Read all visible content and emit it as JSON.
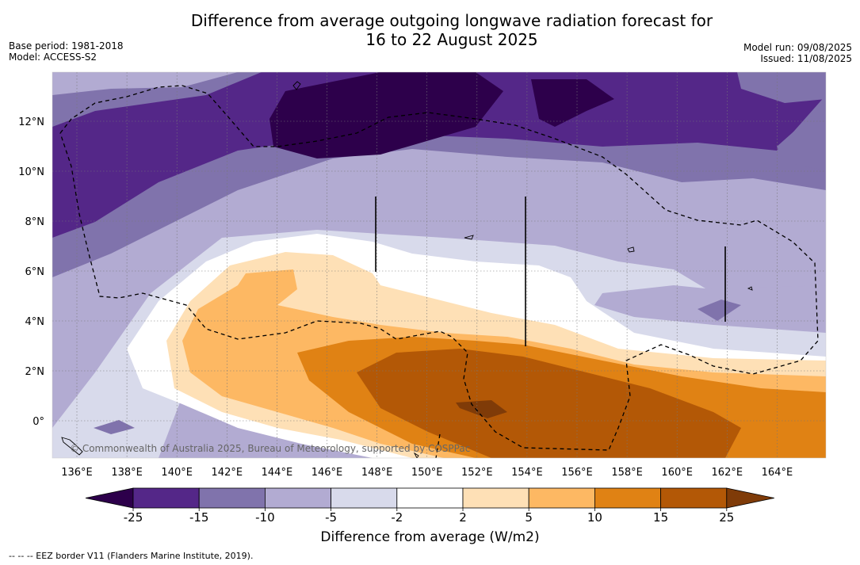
{
  "header": {
    "title_line1": "Difference from average outgoing longwave radiation forecast for",
    "title_line2": "16 to 22 August 2025",
    "base_period": "Base period: 1981-2018",
    "model": "Model: ACCESS-S2",
    "model_run": "Model run: 09/08/2025",
    "issued": "Issued: 11/08/2025"
  },
  "map": {
    "copyright": "© Commonwealth of Australia 2025, Bureau of Meteorology, supported by COSPPac",
    "lon_labels": [
      "136°E",
      "138°E",
      "140°E",
      "142°E",
      "144°E",
      "146°E",
      "148°E",
      "150°E",
      "152°E",
      "154°E",
      "156°E",
      "158°E",
      "160°E",
      "162°E",
      "164°E"
    ],
    "lat_labels": [
      "12°N",
      "10°N",
      "8°N",
      "6°N",
      "4°N",
      "2°N",
      "0°"
    ]
  },
  "colorbar": {
    "ticks": [
      "-25",
      "-15",
      "-10",
      "-5",
      "-2",
      "2",
      "5",
      "10",
      "15",
      "25"
    ],
    "colors": [
      "#2d004b",
      "#542788",
      "#8073ac",
      "#b2abd2",
      "#d8daeb",
      "#ffffff",
      "#fee0b6",
      "#fdb863",
      "#e08214",
      "#b35806",
      "#7f3b08"
    ],
    "label": "Difference from average (W/m2)"
  },
  "footer": {
    "legend": "--  --  -- EEZ border V11 (Flanders Marine Institute, 2019)."
  }
}
